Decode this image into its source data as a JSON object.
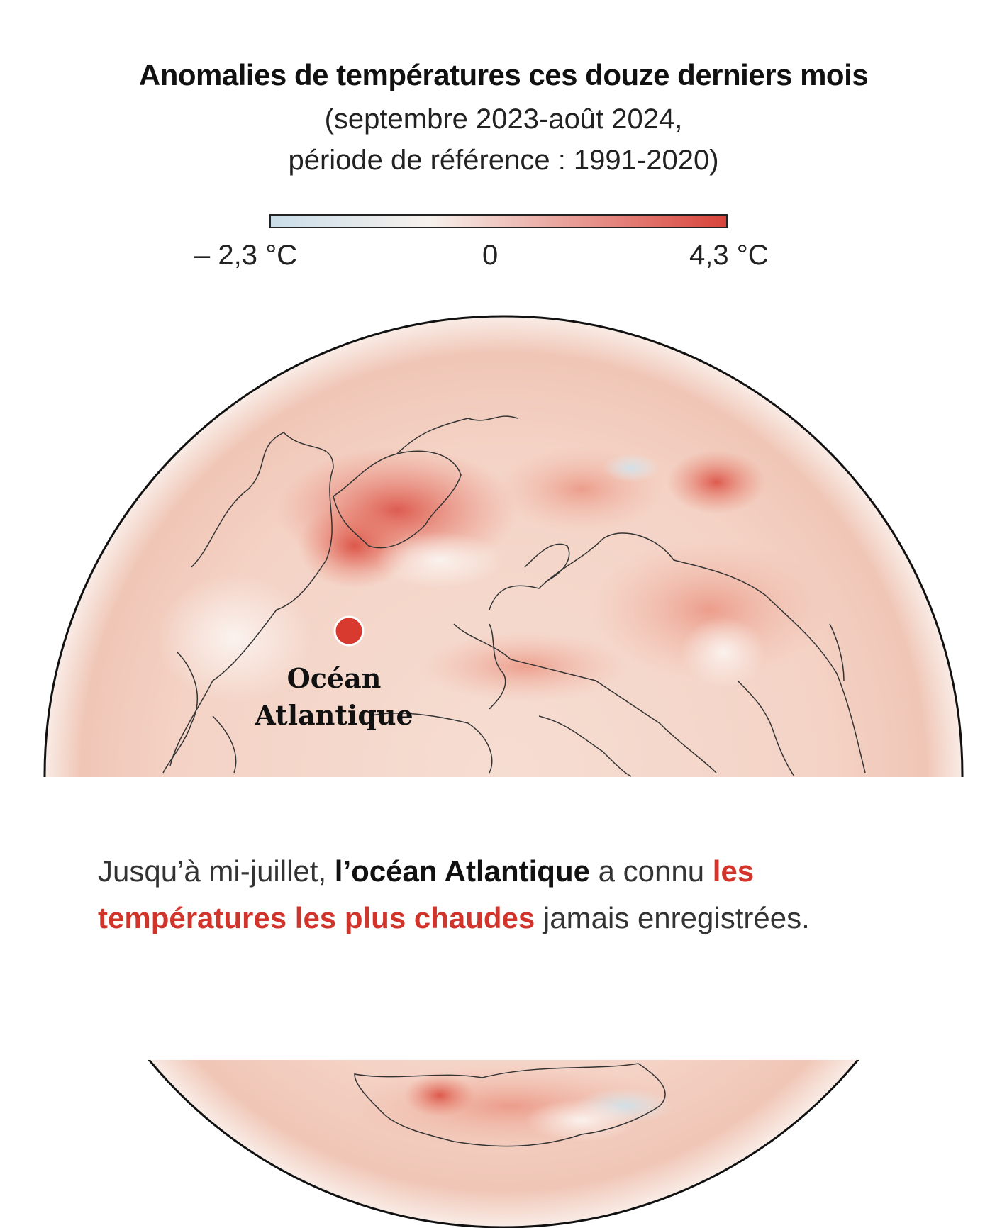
{
  "header": {
    "title": "Anomalies de températures ces douze derniers mois",
    "subtitle_line1": "(septembre 2023-août 2024,",
    "subtitle_line2": "période de référence : 1991-2020)"
  },
  "legend": {
    "min_label": "– 2,3 °C",
    "zero_label": "0",
    "max_label": "4,3 °C",
    "min_value": -2.3,
    "max_value": 4.3,
    "color_cold": "#c9dde8",
    "color_neutral": "#f7f1ec",
    "color_hot": "#d8433a"
  },
  "map": {
    "marker_label_line1": "Océan",
    "marker_label_line2": "Atlantique",
    "marker_color": "#d83a30"
  },
  "caption": {
    "part1": "Jusqu’à mi-juillet, ",
    "bold1": "l’océan Atlantique",
    "part2": " a connu ",
    "highlight": "les températures les plus chaudes",
    "part3": " jamais enregistrées."
  }
}
